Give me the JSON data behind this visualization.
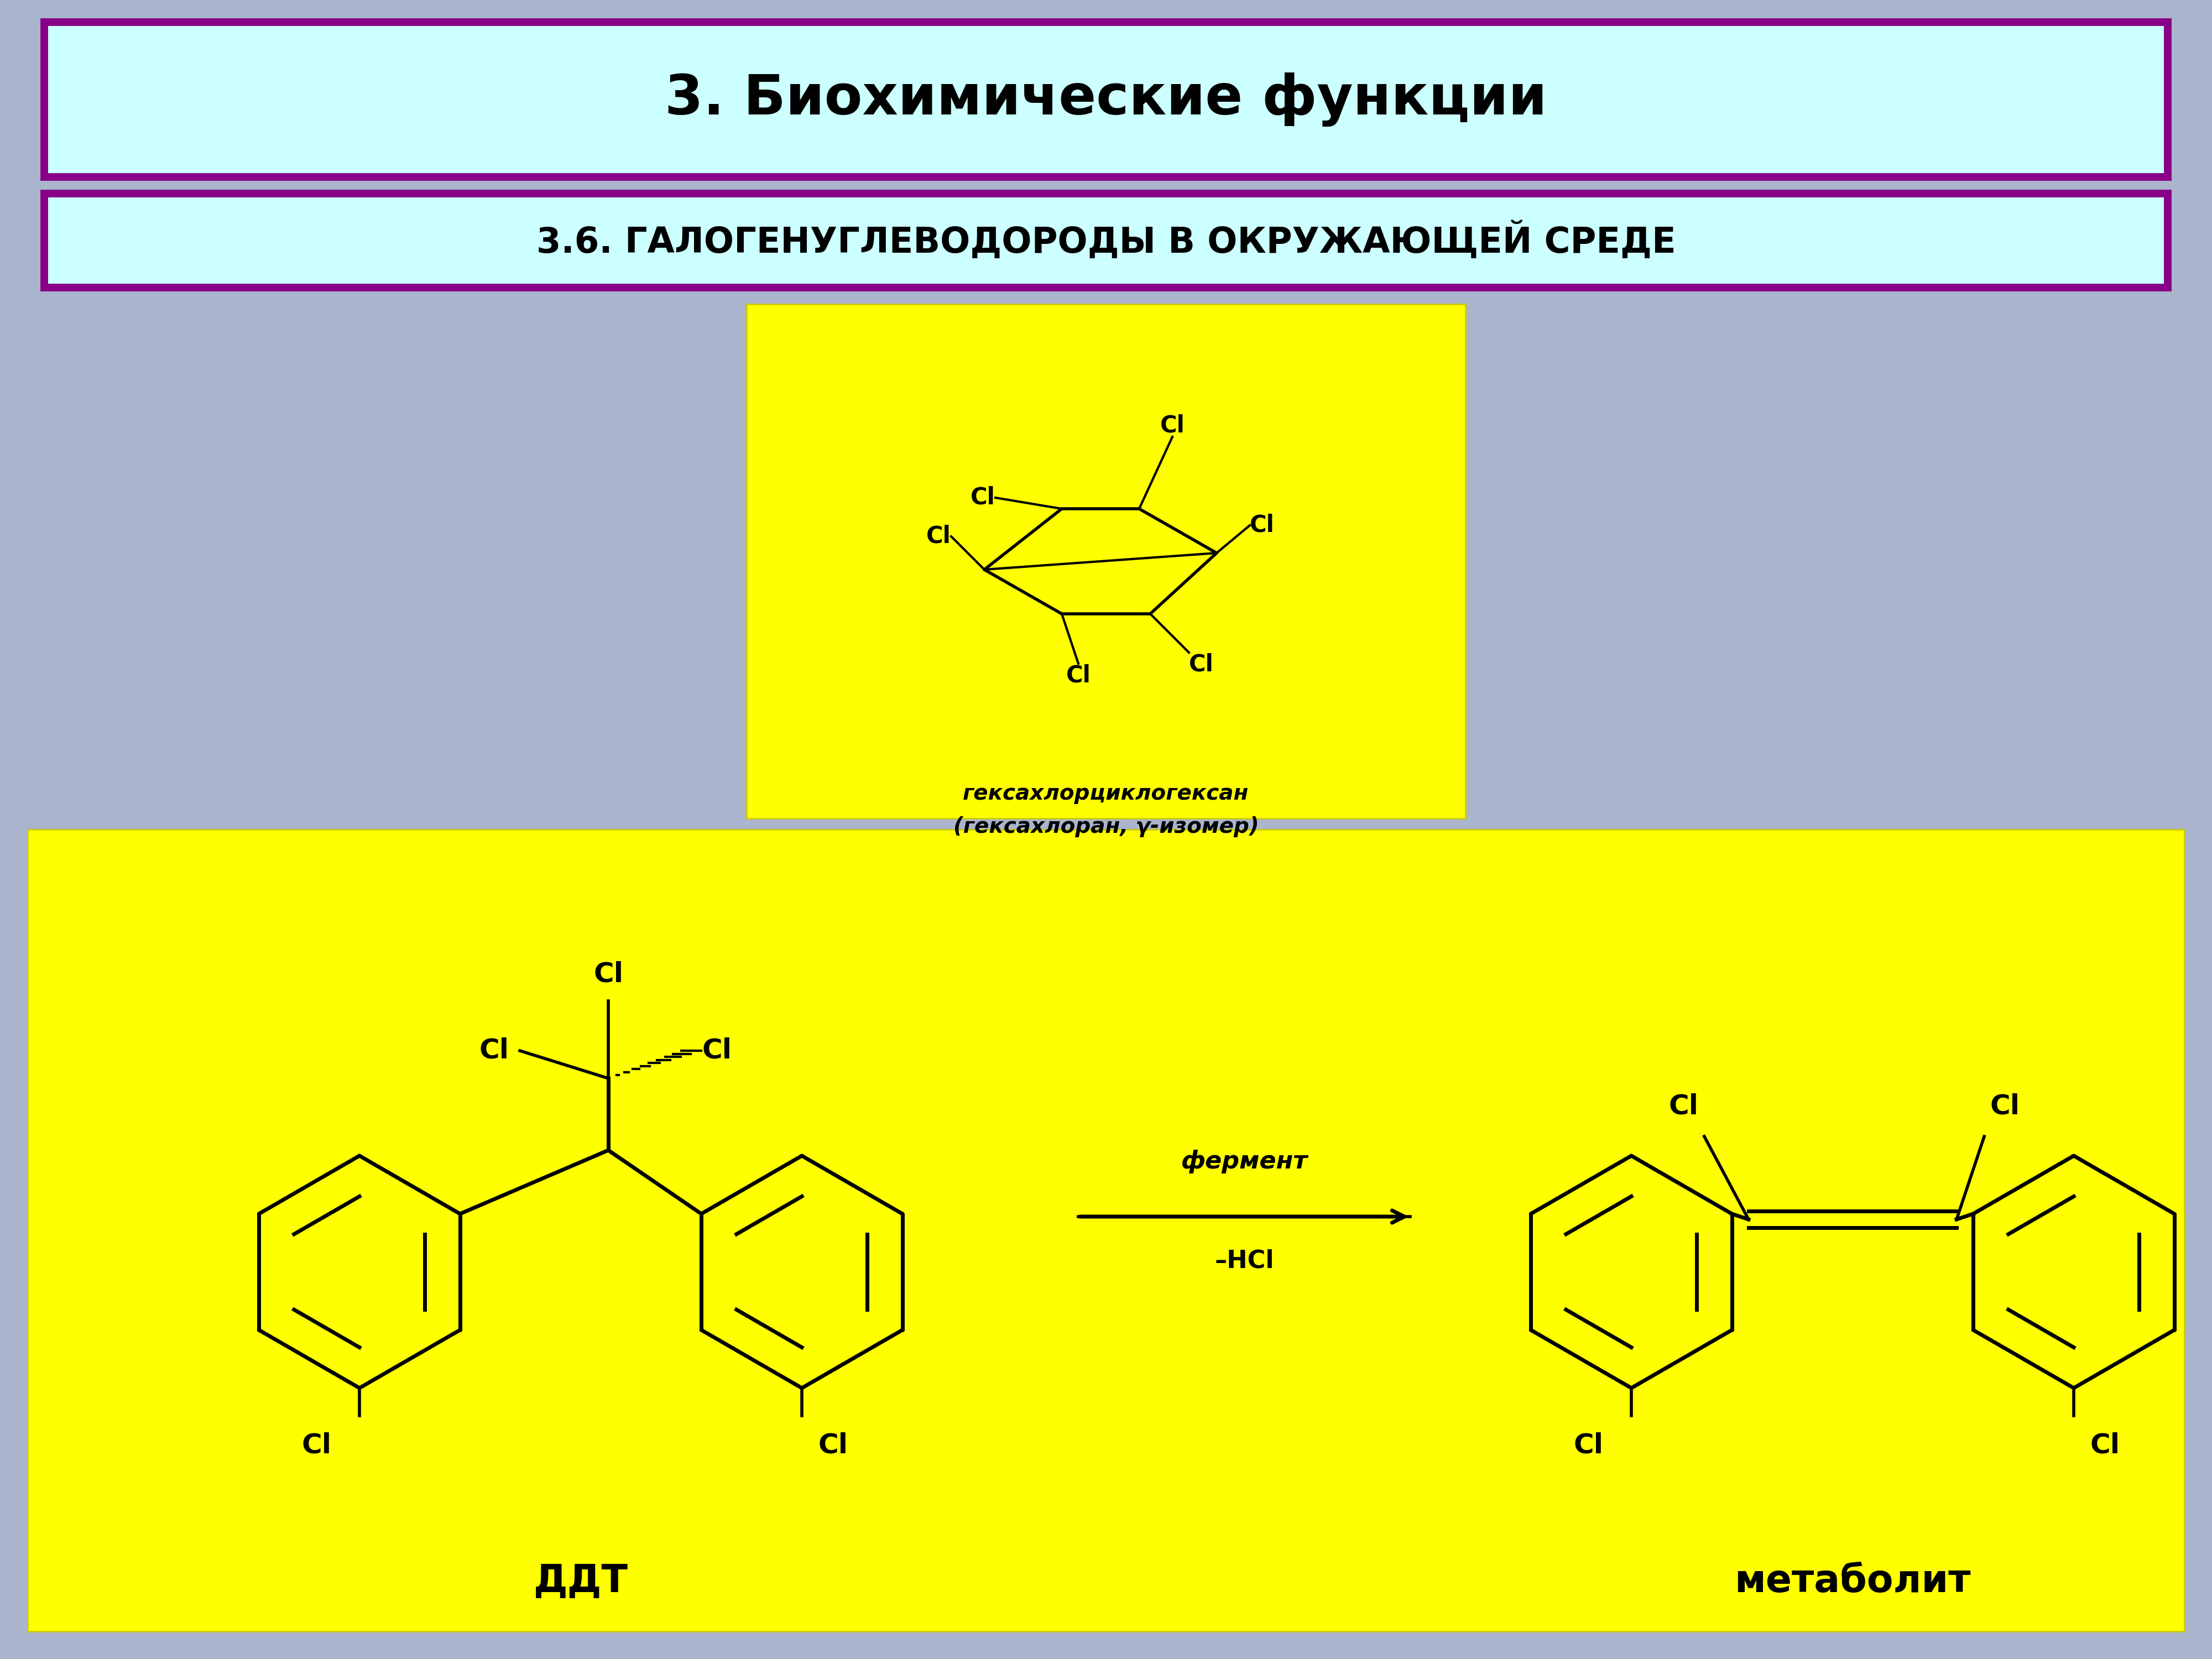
{
  "background_color": "#aab4cc",
  "title_text": "3. Биохимические функции",
  "title_bg": "#ccffff",
  "title_border": "#880088",
  "subtitle_text": "3.6. ГАЛОГЕНУГЛЕВОДОРОДЫ В ОКРУЖАЮЩЕЙ СРЕДЕ",
  "subtitle_bg": "#ccffff",
  "subtitle_border": "#880088",
  "yellow_box1_bg": "#ffff00",
  "yellow_box2_bg": "#ffff00",
  "lindane_label_line1": "гексахлорциклогексан",
  "lindane_label_line2": "(гексахлоран, γ-изомер)",
  "ddt_label": "ДДТ",
  "metabolite_label": "метаболит",
  "reaction_line1": "фермент",
  "reaction_line2": "–HCl"
}
